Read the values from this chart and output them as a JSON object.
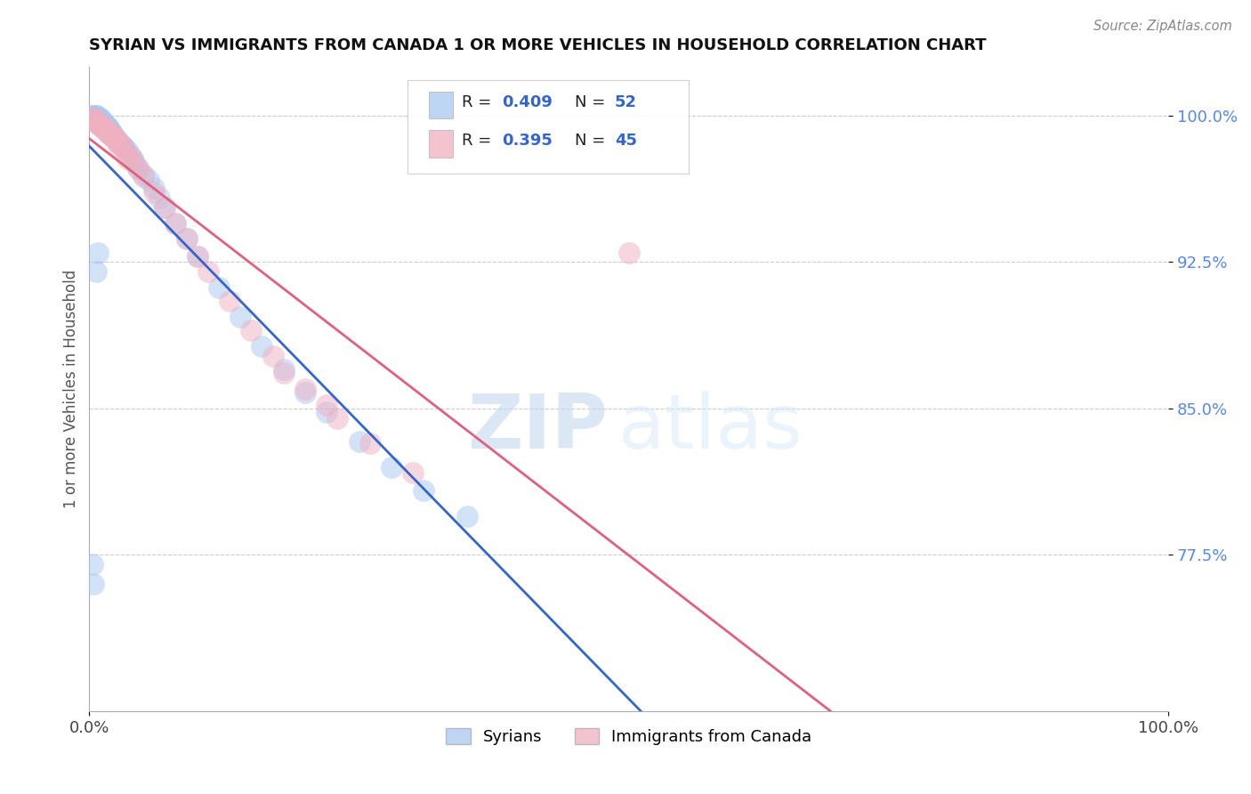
{
  "title": "SYRIAN VS IMMIGRANTS FROM CANADA 1 OR MORE VEHICLES IN HOUSEHOLD CORRELATION CHART",
  "source_text": "Source: ZipAtlas.com",
  "ylabel": "1 or more Vehicles in Household",
  "xlim": [
    0.0,
    1.0
  ],
  "ylim": [
    0.695,
    1.025
  ],
  "y_ticks": [
    0.775,
    0.85,
    0.925,
    1.0
  ],
  "y_tick_labels": [
    "77.5%",
    "85.0%",
    "92.5%",
    "100.0%"
  ],
  "x_ticks": [
    0.0,
    1.0
  ],
  "x_tick_labels": [
    "0.0%",
    "100.0%"
  ],
  "grid_color": "#cccccc",
  "background_color": "#ffffff",
  "syrians_color": "#a8c8f0",
  "canada_color": "#f0b0c0",
  "syrians_line_color": "#3366cc",
  "canada_line_color": "#e06080",
  "watermark_zip": "ZIP",
  "watermark_atlas": "atlas",
  "legend_label_syrians": "Syrians",
  "legend_label_canada": "Immigrants from Canada",
  "syrians_x": [
    0.002,
    0.003,
    0.005,
    0.006,
    0.007,
    0.008,
    0.009,
    0.01,
    0.011,
    0.012,
    0.013,
    0.014,
    0.015,
    0.016,
    0.017,
    0.018,
    0.019,
    0.02,
    0.021,
    0.022,
    0.023,
    0.025,
    0.027,
    0.03,
    0.032,
    0.035,
    0.038,
    0.04,
    0.042,
    0.045,
    0.05,
    0.055,
    0.06,
    0.065,
    0.07,
    0.08,
    0.09,
    0.1,
    0.12,
    0.14,
    0.16,
    0.18,
    0.2,
    0.22,
    0.25,
    0.28,
    0.31,
    0.35,
    0.006,
    0.008,
    0.003,
    0.004
  ],
  "syrians_y": [
    1.0,
    1.0,
    1.0,
    1.0,
    1.0,
    0.999,
    0.999,
    0.998,
    0.998,
    0.997,
    0.997,
    0.996,
    0.995,
    0.995,
    0.994,
    0.993,
    0.993,
    0.992,
    0.991,
    0.99,
    0.989,
    0.988,
    0.987,
    0.985,
    0.984,
    0.982,
    0.98,
    0.978,
    0.976,
    0.973,
    0.97,
    0.967,
    0.963,
    0.958,
    0.953,
    0.945,
    0.937,
    0.928,
    0.912,
    0.897,
    0.882,
    0.87,
    0.858,
    0.848,
    0.833,
    0.82,
    0.808,
    0.795,
    0.92,
    0.93,
    0.77,
    0.76
  ],
  "canada_x": [
    0.003,
    0.005,
    0.007,
    0.009,
    0.011,
    0.013,
    0.015,
    0.017,
    0.019,
    0.021,
    0.023,
    0.026,
    0.029,
    0.032,
    0.036,
    0.04,
    0.045,
    0.05,
    0.06,
    0.07,
    0.08,
    0.09,
    0.1,
    0.11,
    0.13,
    0.15,
    0.17,
    0.2,
    0.23,
    0.26,
    0.3,
    0.008,
    0.01,
    0.012,
    0.014,
    0.016,
    0.018,
    0.02,
    0.022,
    0.025,
    0.028,
    0.035,
    0.5,
    0.22,
    0.18
  ],
  "canada_y": [
    0.999,
    0.998,
    0.997,
    0.996,
    0.995,
    0.994,
    0.993,
    0.992,
    0.991,
    0.99,
    0.989,
    0.987,
    0.985,
    0.983,
    0.98,
    0.977,
    0.973,
    0.969,
    0.961,
    0.953,
    0.945,
    0.937,
    0.928,
    0.92,
    0.905,
    0.89,
    0.877,
    0.86,
    0.845,
    0.832,
    0.817,
    0.996,
    0.995,
    0.994,
    0.993,
    0.992,
    0.991,
    0.99,
    0.989,
    0.987,
    0.984,
    0.978,
    0.93,
    0.852,
    0.868
  ]
}
